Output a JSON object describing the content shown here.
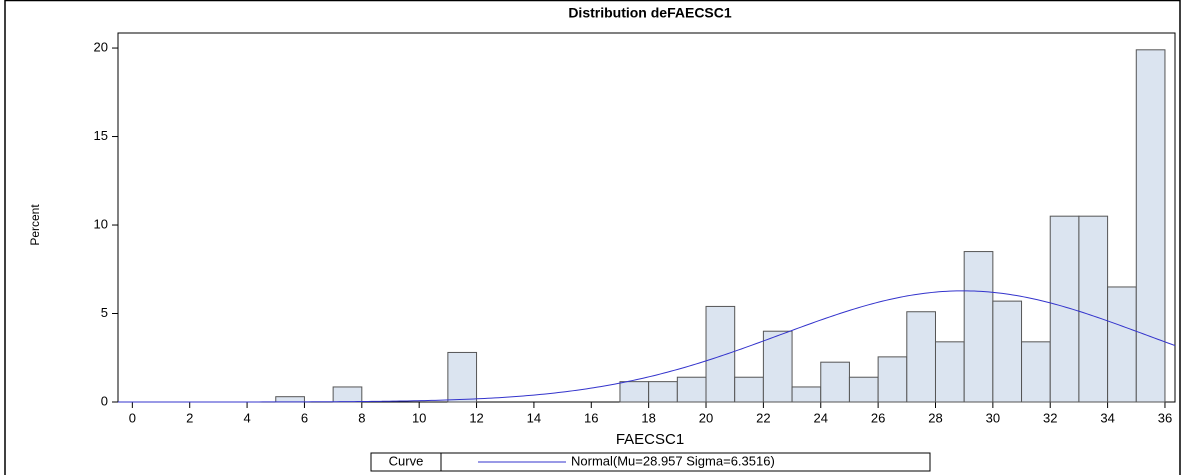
{
  "chart_data": {
    "type": "histogram",
    "title": "Distribution deFAECSC1",
    "x_label": "FAECSC1",
    "y_label": "Percent",
    "bins": [
      5,
      6,
      7,
      8,
      9,
      10,
      11,
      12,
      13,
      14,
      15,
      16,
      17,
      18,
      19,
      20,
      21,
      22,
      23,
      24,
      25,
      26,
      27,
      28,
      29,
      30,
      31,
      32,
      33,
      34,
      35,
      36
    ],
    "values": [
      0.3,
      0,
      0.85,
      0,
      0,
      0,
      2.8,
      0,
      0,
      0,
      0,
      0,
      1.15,
      1.15,
      1.4,
      5.4,
      1.4,
      4.0,
      0.85,
      2.25,
      1.4,
      2.55,
      5.1,
      3.4,
      8.5,
      5.7,
      3.4,
      10.5,
      10.5,
      6.5,
      19.9
    ],
    "color": "#dbe4f0",
    "xlim": [
      -0.5,
      36.35
    ],
    "xticks": [
      0,
      2,
      4,
      6,
      8,
      10,
      12,
      14,
      16,
      18,
      20,
      22,
      24,
      26,
      28,
      30,
      32,
      34,
      36
    ],
    "ylim": [
      0,
      20.85
    ],
    "yticks": [
      0,
      5,
      10,
      15,
      20
    ],
    "curve": {
      "legend_title": "Curve",
      "label": "Normal(Mu=28.957 Sigma=6.3516)",
      "mu": 28.957,
      "sigma": 6.3516,
      "color": "#3333cc"
    }
  }
}
